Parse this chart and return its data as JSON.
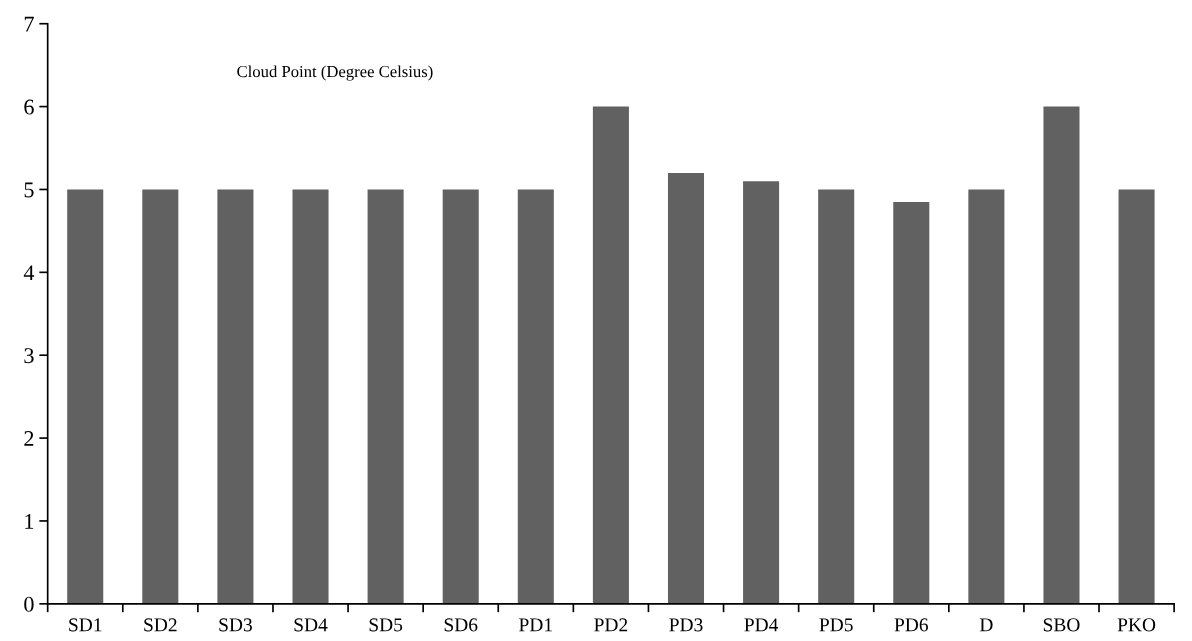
{
  "chart_data": {
    "type": "bar",
    "title": "Cloud Point (Degree Celsius)",
    "categories": [
      "SD1",
      "SD2",
      "SD3",
      "SD4",
      "SD5",
      "SD6",
      "PD1",
      "PD2",
      "PD3",
      "PD4",
      "PD5",
      "PD6",
      "D",
      "SBO",
      "PKO"
    ],
    "values": [
      5,
      5,
      5,
      5,
      5,
      5,
      5,
      6,
      5.2,
      5.1,
      5,
      4.85,
      5,
      6,
      5
    ],
    "color": "#616161",
    "ylim": [
      0,
      7
    ],
    "yticks": [
      0,
      1,
      2,
      3,
      4,
      5,
      6,
      7
    ],
    "grid": false
  }
}
